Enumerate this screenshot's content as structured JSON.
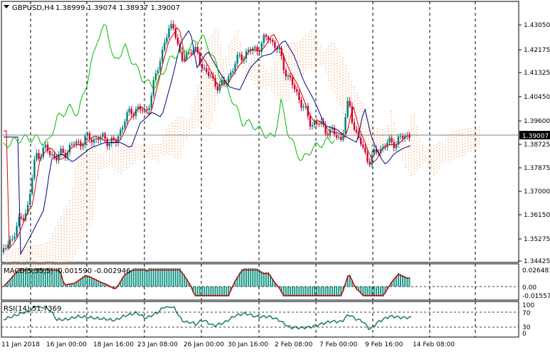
{
  "chart_data": [
    {
      "type": "candlestick",
      "title": "GBPUSD,H4",
      "ohlc": "1.38999 1.39074 1.38937 1.39007",
      "current_price": "1.39007",
      "y_ticks": [
        "1.43050",
        "1.42175",
        "1.41325",
        "1.40450",
        "1.39600",
        "1.38725",
        "1.37875",
        "1.37000",
        "1.36150",
        "1.35275",
        "1.34425"
      ],
      "ylim": [
        1.3434,
        1.4373
      ],
      "x_ticks": [
        "11 Jan 2018",
        "16 Jan 00:00",
        "18 Jan 16:00",
        "23 Jan 08:00",
        "26 Jan 00:00",
        "30 Jan 16:00",
        "2 Feb 08:00",
        "7 Feb 00:00",
        "9 Feb 16:00",
        "14 Feb 08:00"
      ],
      "indicators": [
        "Ichimoku Kinko Hyo: tenkan-sen (red), kijun-sen (navy), chikou span (green), cloud (orange dotted)"
      ],
      "colors": {
        "up": "#008080",
        "down": "#d00030",
        "tenkan": "#dd0000",
        "kijun": "#000080",
        "chikou": "#00bb00",
        "cloud": "#f0a060",
        "grid": "#000000"
      }
    },
    {
      "type": "histogram",
      "title": "MACD(5,35,5) -0.001590 -0.002946",
      "y_ticks": [
        "0.026481",
        "0.00",
        "-0.01557"
      ],
      "colors": {
        "hist": "#1a9a8a",
        "signal": "#cc0000"
      }
    },
    {
      "type": "line",
      "title": "RSI(14) 51.7369",
      "y_ticks": [
        "100",
        "70",
        "30",
        "0"
      ],
      "levels": [
        70,
        30
      ],
      "colors": {
        "line": "#1f7a6a"
      }
    }
  ]
}
